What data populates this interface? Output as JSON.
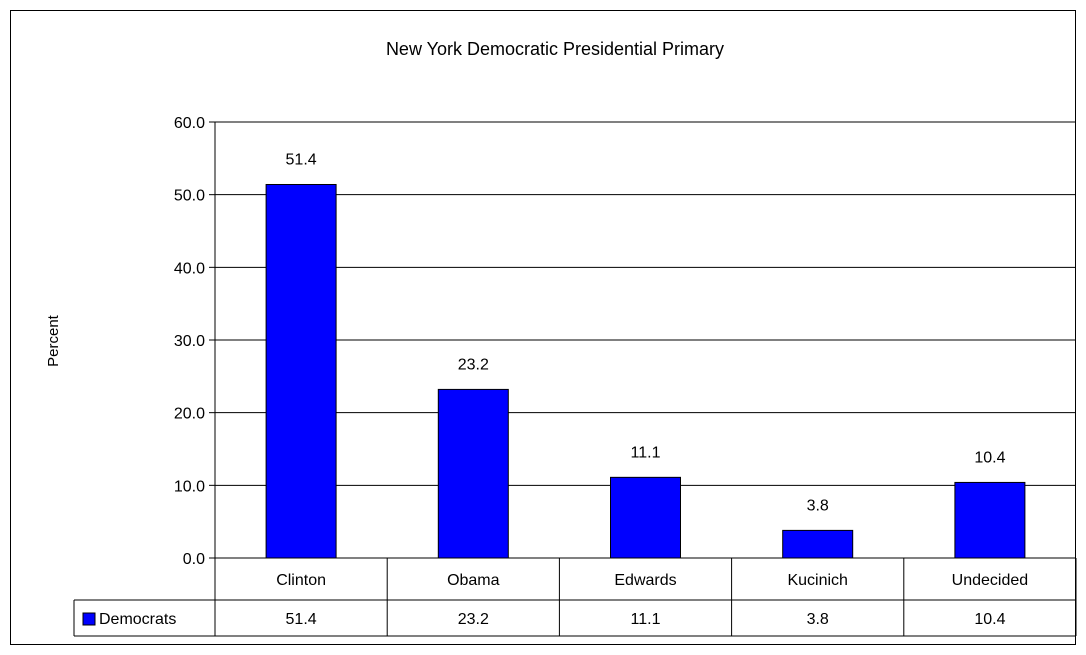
{
  "chart_data": {
    "type": "bar",
    "title": "New York Democratic Presidential Primary",
    "ylabel": "Percent",
    "xlabel": "",
    "categories": [
      "Clinton",
      "Obama",
      "Edwards",
      "Kucinich",
      "Undecided"
    ],
    "series": [
      {
        "name": "Democrats",
        "values": [
          51.4,
          23.2,
          11.1,
          3.8,
          10.4
        ],
        "color": "#0000ff"
      }
    ],
    "ylim": [
      0,
      60
    ],
    "yticks": [
      "0.0",
      "10.0",
      "20.0",
      "30.0",
      "40.0",
      "50.0",
      "60.0"
    ],
    "data_labels": [
      "51.4",
      "23.2",
      "11.1",
      "3.8",
      "10.4"
    ],
    "data_table": {
      "series_label": "Democrats",
      "values": [
        "51.4",
        "23.2",
        "11.1",
        "3.8",
        "10.4"
      ]
    },
    "grid": true,
    "legend": "data-table"
  }
}
